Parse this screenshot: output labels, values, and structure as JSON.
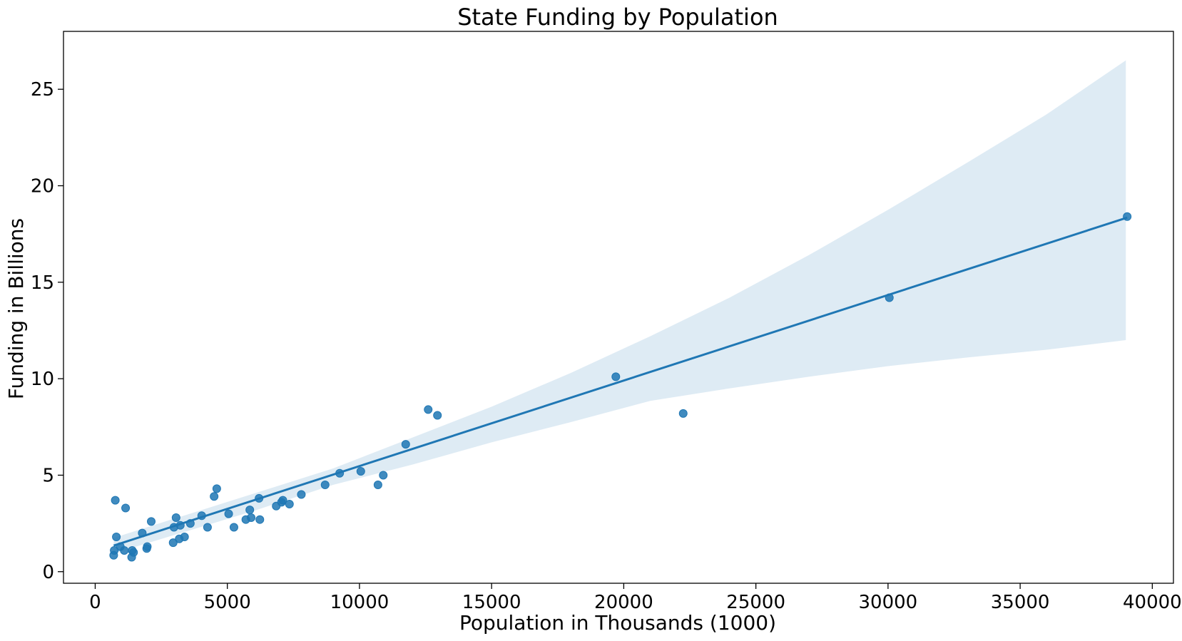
{
  "chart_data": {
    "type": "scatter",
    "title": "State Funding by Population",
    "xlabel": "Population in Thousands (1000)",
    "ylabel": "Funding in Billions",
    "xlim": [
      -1200,
      40800
    ],
    "ylim": [
      -0.6,
      28.0
    ],
    "xticks": [
      0,
      5000,
      10000,
      15000,
      20000,
      25000,
      30000,
      35000,
      40000
    ],
    "yticks": [
      0,
      5,
      10,
      15,
      20,
      25
    ],
    "grid": false,
    "legend": "none",
    "colors": {
      "points": "#1f77b4",
      "line": "#1f77b4",
      "band": "#1f77b4"
    },
    "points": [
      {
        "x": 700,
        "y": 0.85
      },
      {
        "x": 720,
        "y": 1.1
      },
      {
        "x": 760,
        "y": 3.7
      },
      {
        "x": 800,
        "y": 1.8
      },
      {
        "x": 950,
        "y": 1.3
      },
      {
        "x": 1100,
        "y": 1.1
      },
      {
        "x": 1150,
        "y": 3.3
      },
      {
        "x": 1380,
        "y": 0.75
      },
      {
        "x": 1400,
        "y": 1.1
      },
      {
        "x": 1450,
        "y": 1.0
      },
      {
        "x": 1780,
        "y": 2.0
      },
      {
        "x": 1950,
        "y": 1.2
      },
      {
        "x": 1970,
        "y": 1.3
      },
      {
        "x": 2120,
        "y": 2.6
      },
      {
        "x": 2950,
        "y": 1.5
      },
      {
        "x": 2980,
        "y": 2.3
      },
      {
        "x": 3060,
        "y": 2.8
      },
      {
        "x": 3180,
        "y": 1.7
      },
      {
        "x": 3220,
        "y": 2.4
      },
      {
        "x": 3380,
        "y": 1.8
      },
      {
        "x": 3600,
        "y": 2.5
      },
      {
        "x": 4030,
        "y": 2.9
      },
      {
        "x": 4250,
        "y": 2.3
      },
      {
        "x": 4500,
        "y": 3.9
      },
      {
        "x": 4600,
        "y": 4.3
      },
      {
        "x": 5050,
        "y": 3.0
      },
      {
        "x": 5250,
        "y": 2.3
      },
      {
        "x": 5700,
        "y": 2.7
      },
      {
        "x": 5850,
        "y": 3.2
      },
      {
        "x": 5900,
        "y": 2.8
      },
      {
        "x": 6200,
        "y": 3.8
      },
      {
        "x": 6230,
        "y": 2.7
      },
      {
        "x": 6850,
        "y": 3.4
      },
      {
        "x": 7050,
        "y": 3.6
      },
      {
        "x": 7100,
        "y": 3.7
      },
      {
        "x": 7350,
        "y": 3.5
      },
      {
        "x": 7800,
        "y": 4.0
      },
      {
        "x": 8700,
        "y": 4.5
      },
      {
        "x": 9250,
        "y": 5.1
      },
      {
        "x": 10050,
        "y": 5.2
      },
      {
        "x": 10700,
        "y": 4.5
      },
      {
        "x": 10900,
        "y": 5.0
      },
      {
        "x": 11750,
        "y": 6.6
      },
      {
        "x": 12600,
        "y": 8.4
      },
      {
        "x": 12950,
        "y": 8.1
      },
      {
        "x": 19700,
        "y": 10.1
      },
      {
        "x": 22250,
        "y": 8.2
      },
      {
        "x": 30050,
        "y": 14.2
      },
      {
        "x": 39050,
        "y": 18.4
      }
    ],
    "regression": {
      "x": [
        700,
        39050
      ],
      "y": [
        1.35,
        18.35
      ]
    },
    "confidence_band": {
      "x": [
        700,
        3000,
        6000,
        9000,
        12000,
        15000,
        18000,
        21000,
        24000,
        27000,
        30000,
        33000,
        36000,
        39000
      ],
      "upper": [
        1.75,
        2.75,
        4.05,
        5.35,
        6.95,
        8.55,
        10.3,
        12.2,
        14.2,
        16.4,
        18.75,
        21.2,
        23.7,
        26.5
      ],
      "lower": [
        0.95,
        1.9,
        3.15,
        4.5,
        5.55,
        6.7,
        7.75,
        8.85,
        9.5,
        10.1,
        10.65,
        11.1,
        11.5,
        12.0
      ]
    }
  }
}
